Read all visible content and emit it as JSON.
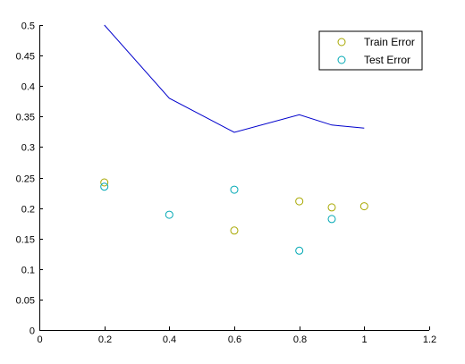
{
  "chart_data": {
    "type": "scatter",
    "xlim": [
      0,
      1.2
    ],
    "ylim": [
      0,
      0.5
    ],
    "x_ticks": [
      0,
      0.2,
      0.4,
      0.6,
      0.8,
      1,
      1.2
    ],
    "x_tick_labels": [
      "0",
      "0.2",
      "0.4",
      "0.6",
      "0.8",
      "1",
      "1.2"
    ],
    "y_ticks": [
      0,
      0.05,
      0.1,
      0.15,
      0.2,
      0.25,
      0.3,
      0.35,
      0.4,
      0.45,
      0.5
    ],
    "y_tick_labels": [
      "0",
      "0.05",
      "0.1",
      "0.15",
      "0.2",
      "0.25",
      "0.3",
      "0.35",
      "0.4",
      "0.45",
      "0.5"
    ],
    "grid": false,
    "legend_placement": "top-right",
    "series": [
      {
        "name": "Train Error",
        "kind": "markers",
        "marker": "circle",
        "color": "#a8a800",
        "x": [
          0.2,
          0.6,
          0.8,
          0.9,
          1.0
        ],
        "y": [
          0.242,
          0.163,
          0.211,
          0.201,
          0.203
        ]
      },
      {
        "name": "Test Error",
        "kind": "markers",
        "marker": "circle",
        "color": "#00a8b4",
        "x": [
          0.2,
          0.4,
          0.6,
          0.8,
          0.9
        ],
        "y": [
          0.235,
          0.189,
          0.23,
          0.13,
          0.182
        ]
      },
      {
        "kind": "line",
        "color": "#0000cc",
        "x": [
          0.2,
          0.4,
          0.6,
          0.8,
          0.9,
          1.0
        ],
        "y": [
          0.5,
          0.38,
          0.324,
          0.353,
          0.336,
          0.331
        ]
      }
    ],
    "legend": {
      "entries": [
        "Train Error",
        "Test Error"
      ]
    }
  }
}
